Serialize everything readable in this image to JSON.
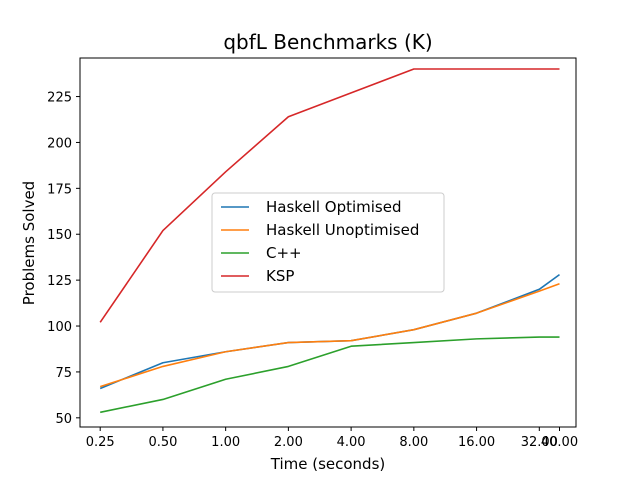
{
  "chart_data": {
    "type": "line",
    "title": "qbfL Benchmarks (K)",
    "xlabel": "Time (seconds)",
    "ylabel": "Problems Solved",
    "x": [
      0.25,
      0.5,
      1,
      2,
      4,
      8,
      16,
      32,
      40
    ],
    "x_tick_labels": [
      "0.25",
      "0.50",
      "1.00",
      "2.00",
      "4.00",
      "8.00",
      "16.00",
      "32.00",
      "40.00"
    ],
    "x_scale": "log2",
    "xlim": [
      0.2,
      48
    ],
    "ylim": [
      45,
      246
    ],
    "y_ticks": [
      50,
      75,
      100,
      125,
      150,
      175,
      200,
      225
    ],
    "grid": false,
    "legend_position": "center",
    "series": [
      {
        "name": "Haskell Optimised",
        "color": "#1f77b4",
        "values": [
          66,
          80,
          86,
          91,
          92,
          98,
          107,
          120,
          128
        ]
      },
      {
        "name": "Haskell Unoptimised",
        "color": "#ff7f0e",
        "values": [
          67,
          78,
          86,
          91,
          92,
          98,
          107,
          119,
          123
        ]
      },
      {
        "name": "C++",
        "color": "#2ca02c",
        "values": [
          53,
          60,
          71,
          78,
          89,
          91,
          93,
          94,
          94
        ]
      },
      {
        "name": "KSP",
        "color": "#d62728",
        "values": [
          102,
          152,
          184,
          214,
          227,
          240,
          240,
          240,
          240
        ]
      }
    ]
  }
}
